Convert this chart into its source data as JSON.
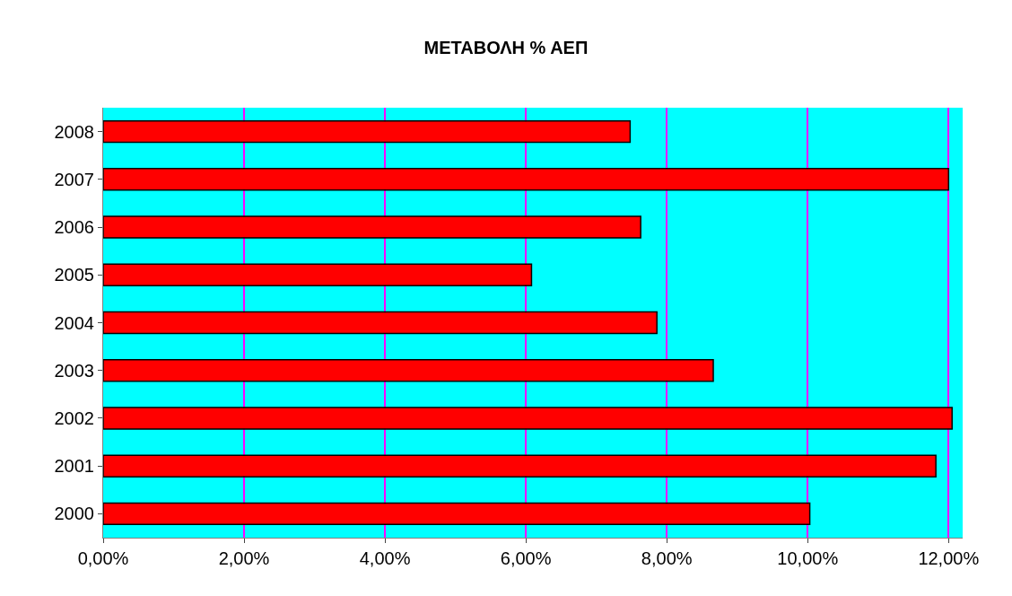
{
  "chart_data": {
    "type": "bar",
    "title": "ΜΕΤΑΒΟΛΗ % ΑΕΠ",
    "orientation": "horizontal",
    "categories": [
      "2008",
      "2007",
      "2006",
      "2005",
      "2004",
      "2003",
      "2002",
      "2001",
      "2000"
    ],
    "values": [
      7.48,
      12.0,
      7.63,
      6.08,
      7.86,
      8.66,
      12.05,
      11.82,
      10.03
    ],
    "color": "#ff0000",
    "xlim": [
      0,
      12.2
    ],
    "xticks": [
      {
        "value": 0,
        "label": "0,00%"
      },
      {
        "value": 2,
        "label": "2,00%"
      },
      {
        "value": 4,
        "label": "4,00%"
      },
      {
        "value": 6,
        "label": "6,00%"
      },
      {
        "value": 8,
        "label": "8,00%"
      },
      {
        "value": 10,
        "label": "10,00%"
      },
      {
        "value": 12,
        "label": "12,00%"
      }
    ],
    "grid": "x",
    "legend": false
  }
}
